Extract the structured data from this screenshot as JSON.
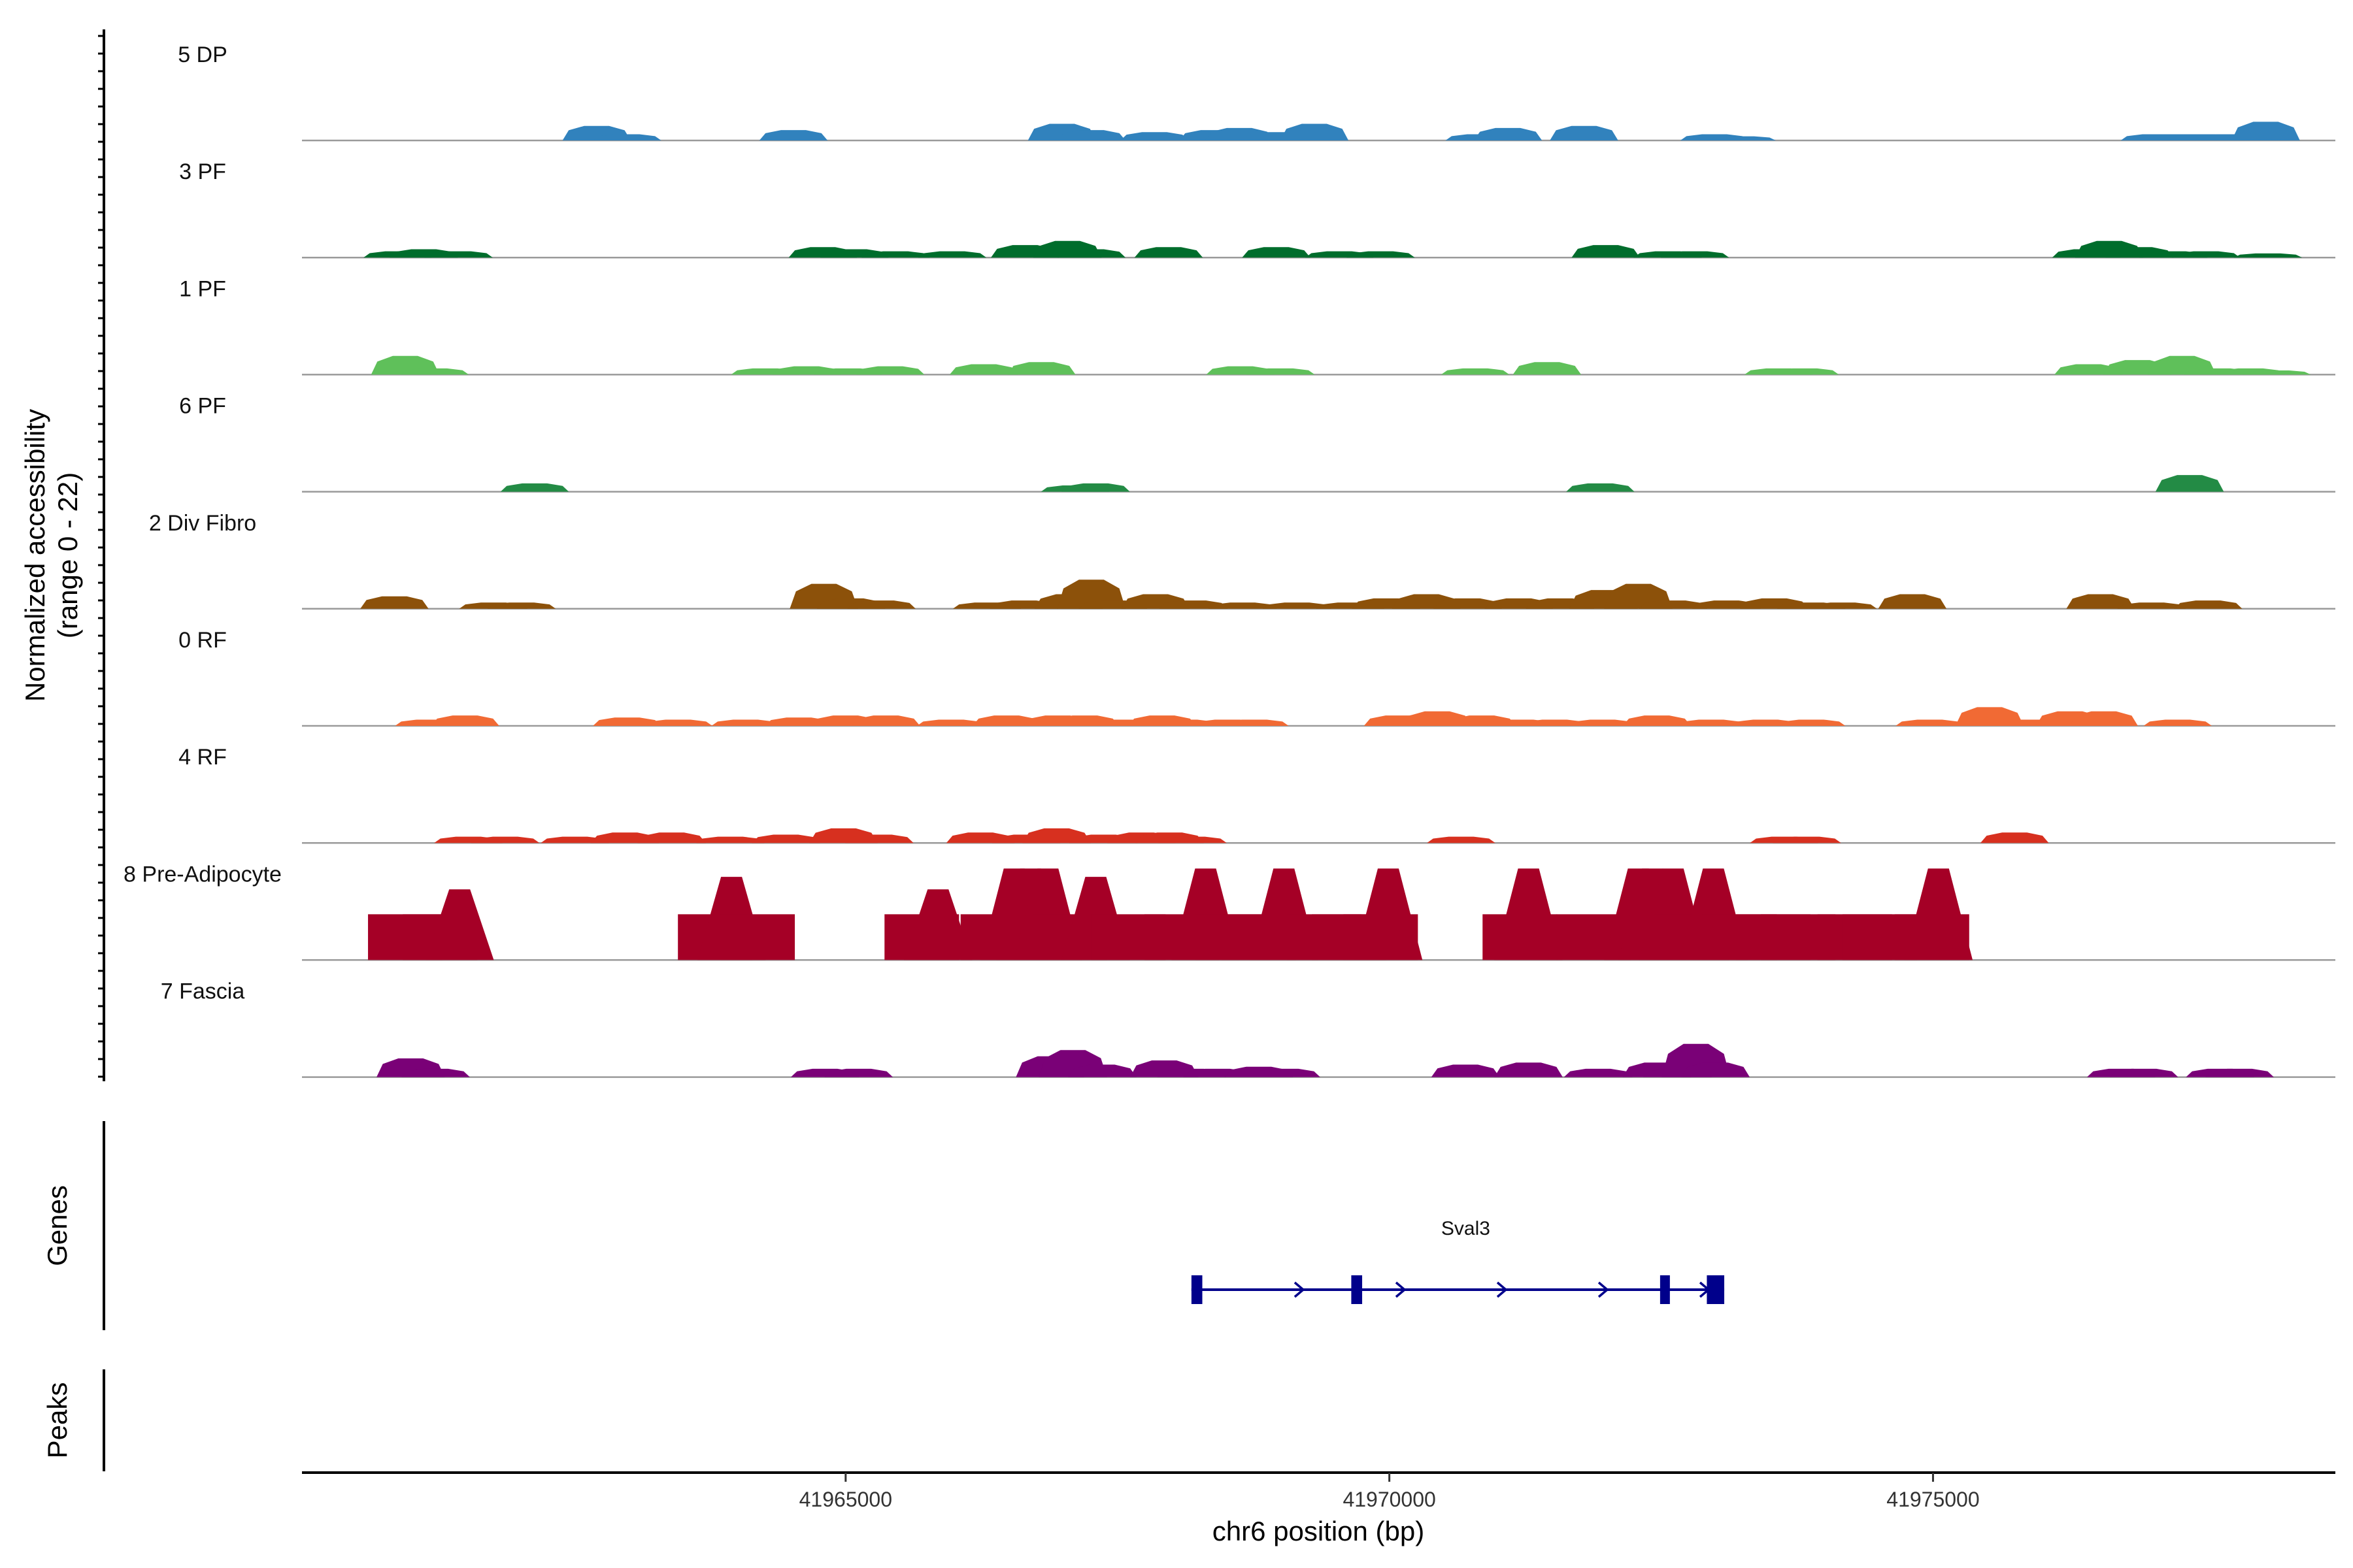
{
  "chart_data": {
    "type": "area",
    "title": "",
    "ylabel_line1": "Normalized accessibility",
    "ylabel_line2": "(range 0 - 22)",
    "y_range": [
      0,
      22
    ],
    "xlabel": "chr6 position (bp)",
    "xlim": [
      41960000,
      41978700
    ],
    "x_ticks": [
      41965000,
      41970000,
      41975000
    ],
    "x_tick_labels": [
      "41965000",
      "41970000",
      "41975000"
    ],
    "genes_label": "Genes",
    "peaks_label": "Peaks",
    "tracks": [
      {
        "name": "5 DP",
        "color": "#3182bd",
        "peaks": [
          [
            41962710,
            7
          ],
          [
            41962990,
            3
          ],
          [
            41964520,
            5
          ],
          [
            41966990,
            8
          ],
          [
            41967260,
            5
          ],
          [
            41967840,
            4
          ],
          [
            41968380,
            5
          ],
          [
            41968620,
            6
          ],
          [
            41968990,
            4
          ],
          [
            41969310,
            8
          ],
          [
            41970830,
            3
          ],
          [
            41971090,
            6
          ],
          [
            41971790,
            7
          ],
          [
            41972990,
            3
          ],
          [
            41973240,
            2
          ],
          [
            41977040,
            3
          ],
          [
            41977270,
            3
          ],
          [
            41977480,
            3
          ],
          [
            41977720,
            3
          ],
          [
            41978060,
            9
          ]
        ]
      },
      {
        "name": "3 PF",
        "color": "#006d2c",
        "peaks": [
          [
            41960880,
            3
          ],
          [
            41961120,
            4
          ],
          [
            41961440,
            3
          ],
          [
            41964790,
            5
          ],
          [
            41965080,
            4
          ],
          [
            41965460,
            3
          ],
          [
            41965980,
            3
          ],
          [
            41966650,
            6
          ],
          [
            41967040,
            8
          ],
          [
            41967260,
            4
          ],
          [
            41967970,
            5
          ],
          [
            41968960,
            5
          ],
          [
            41969540,
            3
          ],
          [
            41969920,
            3
          ],
          [
            41971990,
            6
          ],
          [
            41972560,
            3
          ],
          [
            41972810,
            3
          ],
          [
            41976410,
            4
          ],
          [
            41976620,
            8
          ],
          [
            41976900,
            5
          ],
          [
            41977210,
            3
          ],
          [
            41977510,
            3
          ],
          [
            41978080,
            2
          ]
        ]
      },
      {
        "name": "1 PF",
        "color": "#5fc05a",
        "peaks": [
          [
            41960950,
            9
          ],
          [
            41961220,
            3
          ],
          [
            41964260,
            3
          ],
          [
            41964640,
            4
          ],
          [
            41965020,
            3
          ],
          [
            41965410,
            4
          ],
          [
            41966270,
            5
          ],
          [
            41966800,
            6
          ],
          [
            41968630,
            4
          ],
          [
            41969000,
            3
          ],
          [
            41970790,
            3
          ],
          [
            41971450,
            6
          ],
          [
            41973580,
            3
          ],
          [
            41973820,
            3
          ],
          [
            41976430,
            5
          ],
          [
            41976880,
            7
          ],
          [
            41977290,
            9
          ],
          [
            41977620,
            3
          ],
          [
            41977920,
            3
          ],
          [
            41978160,
            2
          ]
        ]
      },
      {
        "name": "6 PF",
        "color": "#238b45",
        "peaks": [
          [
            41962140,
            4
          ],
          [
            41967110,
            3
          ],
          [
            41967300,
            4
          ],
          [
            41971940,
            4
          ],
          [
            41977360,
            8
          ]
        ]
      },
      {
        "name": "2 Div Fibro",
        "color": "#8c510a",
        "peaks": [
          [
            41960850,
            6
          ],
          [
            41961760,
            3
          ],
          [
            41962020,
            3
          ],
          [
            41964800,
            12
          ],
          [
            41965050,
            5
          ],
          [
            41965330,
            4
          ],
          [
            41966300,
            3
          ],
          [
            41966640,
            4
          ],
          [
            41967050,
            7
          ],
          [
            41967260,
            14
          ],
          [
            41967460,
            4
          ],
          [
            41967850,
            7
          ],
          [
            41968200,
            4
          ],
          [
            41968650,
            3
          ],
          [
            41969150,
            3
          ],
          [
            41969640,
            3
          ],
          [
            41969970,
            5
          ],
          [
            41970340,
            7
          ],
          [
            41970720,
            5
          ],
          [
            41971190,
            5
          ],
          [
            41971570,
            5
          ],
          [
            41971970,
            9
          ],
          [
            41972290,
            12
          ],
          [
            41972610,
            4
          ],
          [
            41973100,
            4
          ],
          [
            41973540,
            5
          ],
          [
            41973880,
            3
          ],
          [
            41974170,
            3
          ],
          [
            41974810,
            7
          ],
          [
            41976540,
            7
          ],
          [
            41977010,
            3
          ],
          [
            41977530,
            4
          ]
        ]
      },
      {
        "name": "0 RF",
        "color": "#f16a34",
        "peaks": [
          [
            41961170,
            3
          ],
          [
            41961500,
            5
          ],
          [
            41962990,
            4
          ],
          [
            41963460,
            3
          ],
          [
            41964080,
            3
          ],
          [
            41964570,
            4
          ],
          [
            41965000,
            5
          ],
          [
            41965370,
            5
          ],
          [
            41965970,
            3
          ],
          [
            41966480,
            5
          ],
          [
            41966950,
            5
          ],
          [
            41967200,
            5
          ],
          [
            41967580,
            3
          ],
          [
            41967910,
            5
          ],
          [
            41968120,
            3
          ],
          [
            41968510,
            3
          ],
          [
            41968760,
            3
          ],
          [
            41970080,
            5
          ],
          [
            41970320,
            3
          ],
          [
            41970440,
            7
          ],
          [
            41970850,
            5
          ],
          [
            41971210,
            3
          ],
          [
            41971520,
            3
          ],
          [
            41971960,
            3
          ],
          [
            41972460,
            5
          ],
          [
            41972960,
            3
          ],
          [
            41973460,
            3
          ],
          [
            41973880,
            3
          ],
          [
            41974970,
            3
          ],
          [
            41975520,
            9
          ],
          [
            41975880,
            3
          ],
          [
            41976260,
            7
          ],
          [
            41976570,
            7
          ],
          [
            41977250,
            3
          ]
        ]
      },
      {
        "name": "4 RF",
        "color": "#d7301f",
        "peaks": [
          [
            41961530,
            3
          ],
          [
            41961870,
            3
          ],
          [
            41962510,
            3
          ],
          [
            41962970,
            5
          ],
          [
            41963400,
            5
          ],
          [
            41963940,
            3
          ],
          [
            41964450,
            4
          ],
          [
            41964980,
            7
          ],
          [
            41965310,
            4
          ],
          [
            41966240,
            5
          ],
          [
            41966660,
            4
          ],
          [
            41966940,
            7
          ],
          [
            41967370,
            4
          ],
          [
            41967720,
            5
          ],
          [
            41967980,
            5
          ],
          [
            41968190,
            3
          ],
          [
            41970660,
            3
          ],
          [
            41973630,
            3
          ],
          [
            41973840,
            3
          ],
          [
            41975750,
            5
          ]
        ]
      },
      {
        "name": "8 Pre-Adipocyte",
        "color": "#a50026",
        "peaks": [
          [
            41960950,
            22
          ],
          [
            41961270,
            22
          ],
          [
            41961450,
            34
          ],
          [
            41963800,
            22
          ],
          [
            41963950,
            40
          ],
          [
            41964190,
            22
          ],
          [
            41965700,
            22
          ],
          [
            41965850,
            34
          ],
          [
            41966400,
            22
          ],
          [
            41966550,
            44
          ],
          [
            41966700,
            44
          ],
          [
            41966860,
            44
          ],
          [
            41967060,
            22
          ],
          [
            41967300,
            40
          ],
          [
            41967600,
            22
          ],
          [
            41968090,
            22
          ],
          [
            41968310,
            44
          ],
          [
            41968560,
            22
          ],
          [
            41968800,
            22
          ],
          [
            41969030,
            44
          ],
          [
            41969400,
            22
          ],
          [
            41969630,
            22
          ],
          [
            41969920,
            22
          ],
          [
            41969990,
            44
          ],
          [
            41971200,
            22
          ],
          [
            41971280,
            44
          ],
          [
            41971880,
            22
          ],
          [
            41972290,
            44
          ],
          [
            41972420,
            44
          ],
          [
            41972610,
            44
          ],
          [
            41972780,
            22
          ],
          [
            41972980,
            44
          ],
          [
            41973220,
            22
          ],
          [
            41973530,
            22
          ],
          [
            41973760,
            22
          ],
          [
            41974280,
            22
          ],
          [
            41974510,
            22
          ],
          [
            41974990,
            22
          ],
          [
            41975050,
            44
          ]
        ]
      },
      {
        "name": "7 Fascia",
        "color": "#7a0177",
        "peaks": [
          [
            41961000,
            9
          ],
          [
            41961230,
            4
          ],
          [
            41964810,
            4
          ],
          [
            41965120,
            4
          ],
          [
            41966880,
            10
          ],
          [
            41967090,
            13
          ],
          [
            41967360,
            6
          ],
          [
            41967930,
            8
          ],
          [
            41968180,
            4
          ],
          [
            41968420,
            4
          ],
          [
            41968800,
            5
          ],
          [
            41969050,
            4
          ],
          [
            41970700,
            6
          ],
          [
            41971280,
            7
          ],
          [
            41971920,
            4
          ],
          [
            41972460,
            7
          ],
          [
            41972650,
            4
          ],
          [
            41972820,
            16
          ],
          [
            41973000,
            7
          ],
          [
            41976730,
            4
          ],
          [
            41976940,
            4
          ],
          [
            41977640,
            4
          ],
          [
            41977820,
            4
          ]
        ]
      }
    ],
    "gene": {
      "name": "Sval3",
      "start": 41968180,
      "end": 41973080,
      "strand": "+",
      "exons": [
        [
          41968180,
          41968280
        ],
        [
          41969650,
          41969750
        ],
        [
          41972490,
          41972580
        ],
        [
          41972920,
          41973080
        ]
      ]
    }
  }
}
